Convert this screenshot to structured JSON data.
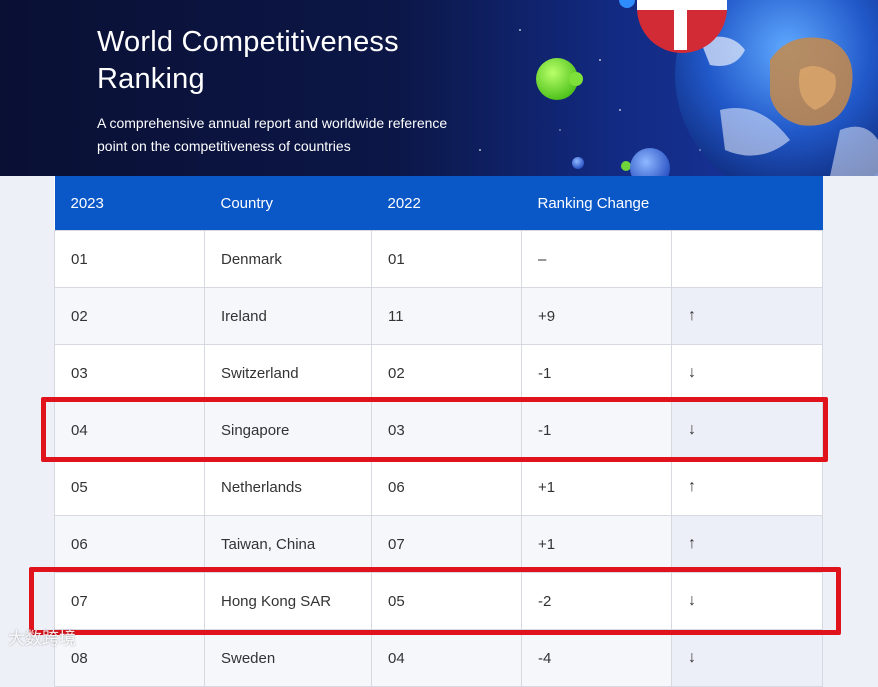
{
  "hero": {
    "title": "World Competitiveness Ranking",
    "subtitle": "A comprehensive annual report and worldwide reference point on the competitiveness of countries"
  },
  "table": {
    "headers": [
      "2023",
      "Country",
      "2022",
      "Ranking Change",
      ""
    ],
    "rows": [
      {
        "rank_2023": "01",
        "country": "Denmark",
        "rank_2022": "01",
        "change": "–",
        "arrow": ""
      },
      {
        "rank_2023": "02",
        "country": "Ireland",
        "rank_2022": "11",
        "change": "+9",
        "arrow": "↑"
      },
      {
        "rank_2023": "03",
        "country": "Switzerland",
        "rank_2022": "02",
        "change": "-1",
        "arrow": "↓"
      },
      {
        "rank_2023": "04",
        "country": "Singapore",
        "rank_2022": "03",
        "change": "-1",
        "arrow": "↓"
      },
      {
        "rank_2023": "05",
        "country": "Netherlands",
        "rank_2022": "06",
        "change": "+1",
        "arrow": "↑"
      },
      {
        "rank_2023": "06",
        "country": "Taiwan, China",
        "rank_2022": "07",
        "change": "+1",
        "arrow": "↑"
      },
      {
        "rank_2023": "07",
        "country": "Hong Kong SAR",
        "rank_2022": "05",
        "change": "-2",
        "arrow": "↓"
      },
      {
        "rank_2023": "08",
        "country": "Sweden",
        "rank_2022": "04",
        "change": "-4",
        "arrow": "↓"
      }
    ]
  },
  "watermark": {
    "text": "大数跨境"
  },
  "colors": {
    "header_blue": "#0a57c8",
    "hero_navy": "#0a1034",
    "highlight_red": "#e0131c"
  },
  "icons": [
    "globe-image",
    "denmark-flag-ball",
    "green-bubble",
    "arrow-up-icon",
    "arrow-down-icon"
  ]
}
